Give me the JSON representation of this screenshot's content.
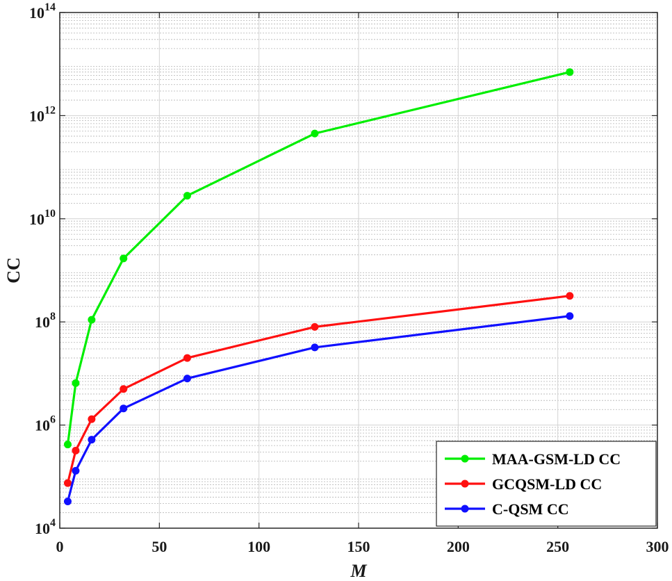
{
  "chart_data": {
    "type": "line",
    "title": "",
    "xlabel": "M",
    "ylabel": "CC",
    "xlim": [
      0,
      300
    ],
    "ylim": [
      10000,
      100000000000000
    ],
    "y_scale": "log",
    "x_ticks": [
      0,
      50,
      100,
      150,
      200,
      250,
      300
    ],
    "y_ticks": [
      10000,
      1000000,
      100000000,
      10000000000,
      1000000000000,
      100000000000000
    ],
    "y_tick_labels": [
      {
        "base": "10",
        "exp": "4"
      },
      {
        "base": "10",
        "exp": "6"
      },
      {
        "base": "10",
        "exp": "8"
      },
      {
        "base": "10",
        "exp": "10"
      },
      {
        "base": "10",
        "exp": "12"
      },
      {
        "base": "10",
        "exp": "14"
      }
    ],
    "grid": true,
    "minor_grid": true,
    "legend_position": "bottom-right",
    "x": [
      4,
      8,
      16,
      32,
      64,
      128,
      256
    ],
    "series": [
      {
        "name": "MAA-GSM-LD CC",
        "color": "#00ee00",
        "values": [
          420000,
          6500000,
          110000000,
          1700000000,
          28000000000,
          450000000000,
          7000000000000
        ]
      },
      {
        "name": "GCQSM-LD CC",
        "color": "#ff1010",
        "values": [
          75000,
          320000,
          1300000,
          5000000,
          20000000,
          80000000,
          320000000
        ]
      },
      {
        "name": "C-QSM CC",
        "color": "#1010ff",
        "values": [
          33000,
          130000,
          520000,
          2100000,
          8000000,
          32000000,
          130000000
        ]
      }
    ]
  }
}
